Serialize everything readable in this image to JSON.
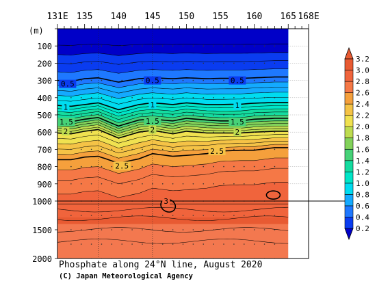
{
  "chart_data": {
    "type": "heatmap",
    "title": "Phosphate along 24°N line, August 2020",
    "credit": "(C) Japan Meteorological Agency",
    "x_axis": {
      "range": [
        131,
        168
      ],
      "tick_labels": [
        {
          "value": 131,
          "label": "131E"
        },
        {
          "value": 135,
          "label": "135"
        },
        {
          "value": 140,
          "label": "140"
        },
        {
          "value": 145,
          "label": "145"
        },
        {
          "value": 150,
          "label": "150"
        },
        {
          "value": 155,
          "label": "155"
        },
        {
          "value": 160,
          "label": "160"
        },
        {
          "value": 165,
          "label": "165"
        },
        {
          "value": 168,
          "label": "168E"
        }
      ],
      "data_extent": [
        131,
        165
      ],
      "position": "top"
    },
    "y_axis": {
      "unit_label": "(m)",
      "reversed": true,
      "scale": "piecewise linear: 0-1000 m upper panel, 1000-2000 m compressed lower panel",
      "tick_labels": [
        0,
        100,
        200,
        300,
        400,
        500,
        600,
        700,
        800,
        900,
        1000,
        1500,
        2000
      ]
    },
    "colorbar": {
      "position": "right",
      "levels": [
        "0.2",
        "0.4",
        "0.6",
        "0.8",
        "1.0",
        "1.2",
        "1.4",
        "1.6",
        "1.8",
        "2.0",
        "2.2",
        "2.4",
        "2.6",
        "2.8",
        "3.0",
        "3.2"
      ],
      "colors": [
        "#0000c8",
        "#0a3cf0",
        "#1e78ff",
        "#14aaff",
        "#00dcf0",
        "#00e6c8",
        "#14dca0",
        "#46d278",
        "#82d25a",
        "#bedc50",
        "#f0e150",
        "#f5c346",
        "#f5a03c",
        "#f57846",
        "#f0643c",
        "#e85a32",
        "#f3784f"
      ]
    },
    "contour_labels": [
      {
        "text": "0.5",
        "x": 132.5,
        "depth": 320
      },
      {
        "text": "0.5",
        "x": 145.0,
        "depth": 300
      },
      {
        "text": "0.5",
        "x": 157.5,
        "depth": 300
      },
      {
        "text": "1",
        "x": 132.2,
        "depth": 455
      },
      {
        "text": "1",
        "x": 145.0,
        "depth": 440
      },
      {
        "text": "1",
        "x": 157.5,
        "depth": 445
      },
      {
        "text": "1.5",
        "x": 132.3,
        "depth": 540
      },
      {
        "text": "1.5",
        "x": 145.0,
        "depth": 535
      },
      {
        "text": "1.5",
        "x": 157.5,
        "depth": 540
      },
      {
        "text": "2",
        "x": 132.2,
        "depth": 595
      },
      {
        "text": "2",
        "x": 145.0,
        "depth": 585
      },
      {
        "text": "2",
        "x": 157.5,
        "depth": 600
      },
      {
        "text": "2.5",
        "x": 154.5,
        "depth": 710
      },
      {
        "text": "2.5",
        "x": 140.5,
        "depth": 795
      },
      {
        "text": "3",
        "x": 147.0,
        "depth": 1000
      }
    ],
    "contours": [
      {
        "level": 0.5,
        "points": [
          [
            131,
            300
          ],
          [
            133,
            305
          ],
          [
            135,
            290
          ],
          [
            137,
            285
          ],
          [
            140,
            310
          ],
          [
            143,
            290
          ],
          [
            145,
            285
          ],
          [
            148,
            290
          ],
          [
            150,
            285
          ],
          [
            153,
            290
          ],
          [
            155,
            288
          ],
          [
            158,
            288
          ],
          [
            160,
            285
          ],
          [
            163,
            280
          ],
          [
            165,
            280
          ]
        ]
      },
      {
        "level": 1.0,
        "points": [
          [
            131,
            445
          ],
          [
            133,
            450
          ],
          [
            135,
            440
          ],
          [
            137,
            430
          ],
          [
            140,
            470
          ],
          [
            143,
            440
          ],
          [
            145,
            430
          ],
          [
            148,
            440
          ],
          [
            150,
            430
          ],
          [
            153,
            440
          ],
          [
            155,
            440
          ],
          [
            158,
            438
          ],
          [
            160,
            432
          ],
          [
            163,
            428
          ],
          [
            165,
            428
          ]
        ]
      },
      {
        "level": 1.5,
        "points": [
          [
            131,
            535
          ],
          [
            133,
            540
          ],
          [
            135,
            525
          ],
          [
            137,
            515
          ],
          [
            140,
            565
          ],
          [
            143,
            530
          ],
          [
            145,
            525
          ],
          [
            148,
            535
          ],
          [
            150,
            520
          ],
          [
            153,
            530
          ],
          [
            155,
            535
          ],
          [
            158,
            535
          ],
          [
            160,
            525
          ],
          [
            163,
            520
          ],
          [
            165,
            520
          ]
        ]
      },
      {
        "level": 2.0,
        "points": [
          [
            131,
            605
          ],
          [
            133,
            610
          ],
          [
            135,
            595
          ],
          [
            137,
            585
          ],
          [
            140,
            635
          ],
          [
            143,
            600
          ],
          [
            145,
            590
          ],
          [
            148,
            610
          ],
          [
            150,
            595
          ],
          [
            153,
            605
          ],
          [
            155,
            605
          ],
          [
            158,
            605
          ],
          [
            160,
            600
          ],
          [
            163,
            595
          ],
          [
            165,
            595
          ]
        ]
      },
      {
        "level": 2.5,
        "points": [
          [
            131,
            760
          ],
          [
            133,
            760
          ],
          [
            135,
            745
          ],
          [
            137,
            740
          ],
          [
            140,
            780
          ],
          [
            143,
            755
          ],
          [
            145,
            725
          ],
          [
            148,
            740
          ],
          [
            150,
            735
          ],
          [
            153,
            725
          ],
          [
            155,
            710
          ],
          [
            158,
            705
          ],
          [
            160,
            705
          ],
          [
            163,
            690
          ],
          [
            165,
            690
          ]
        ]
      }
    ]
  }
}
